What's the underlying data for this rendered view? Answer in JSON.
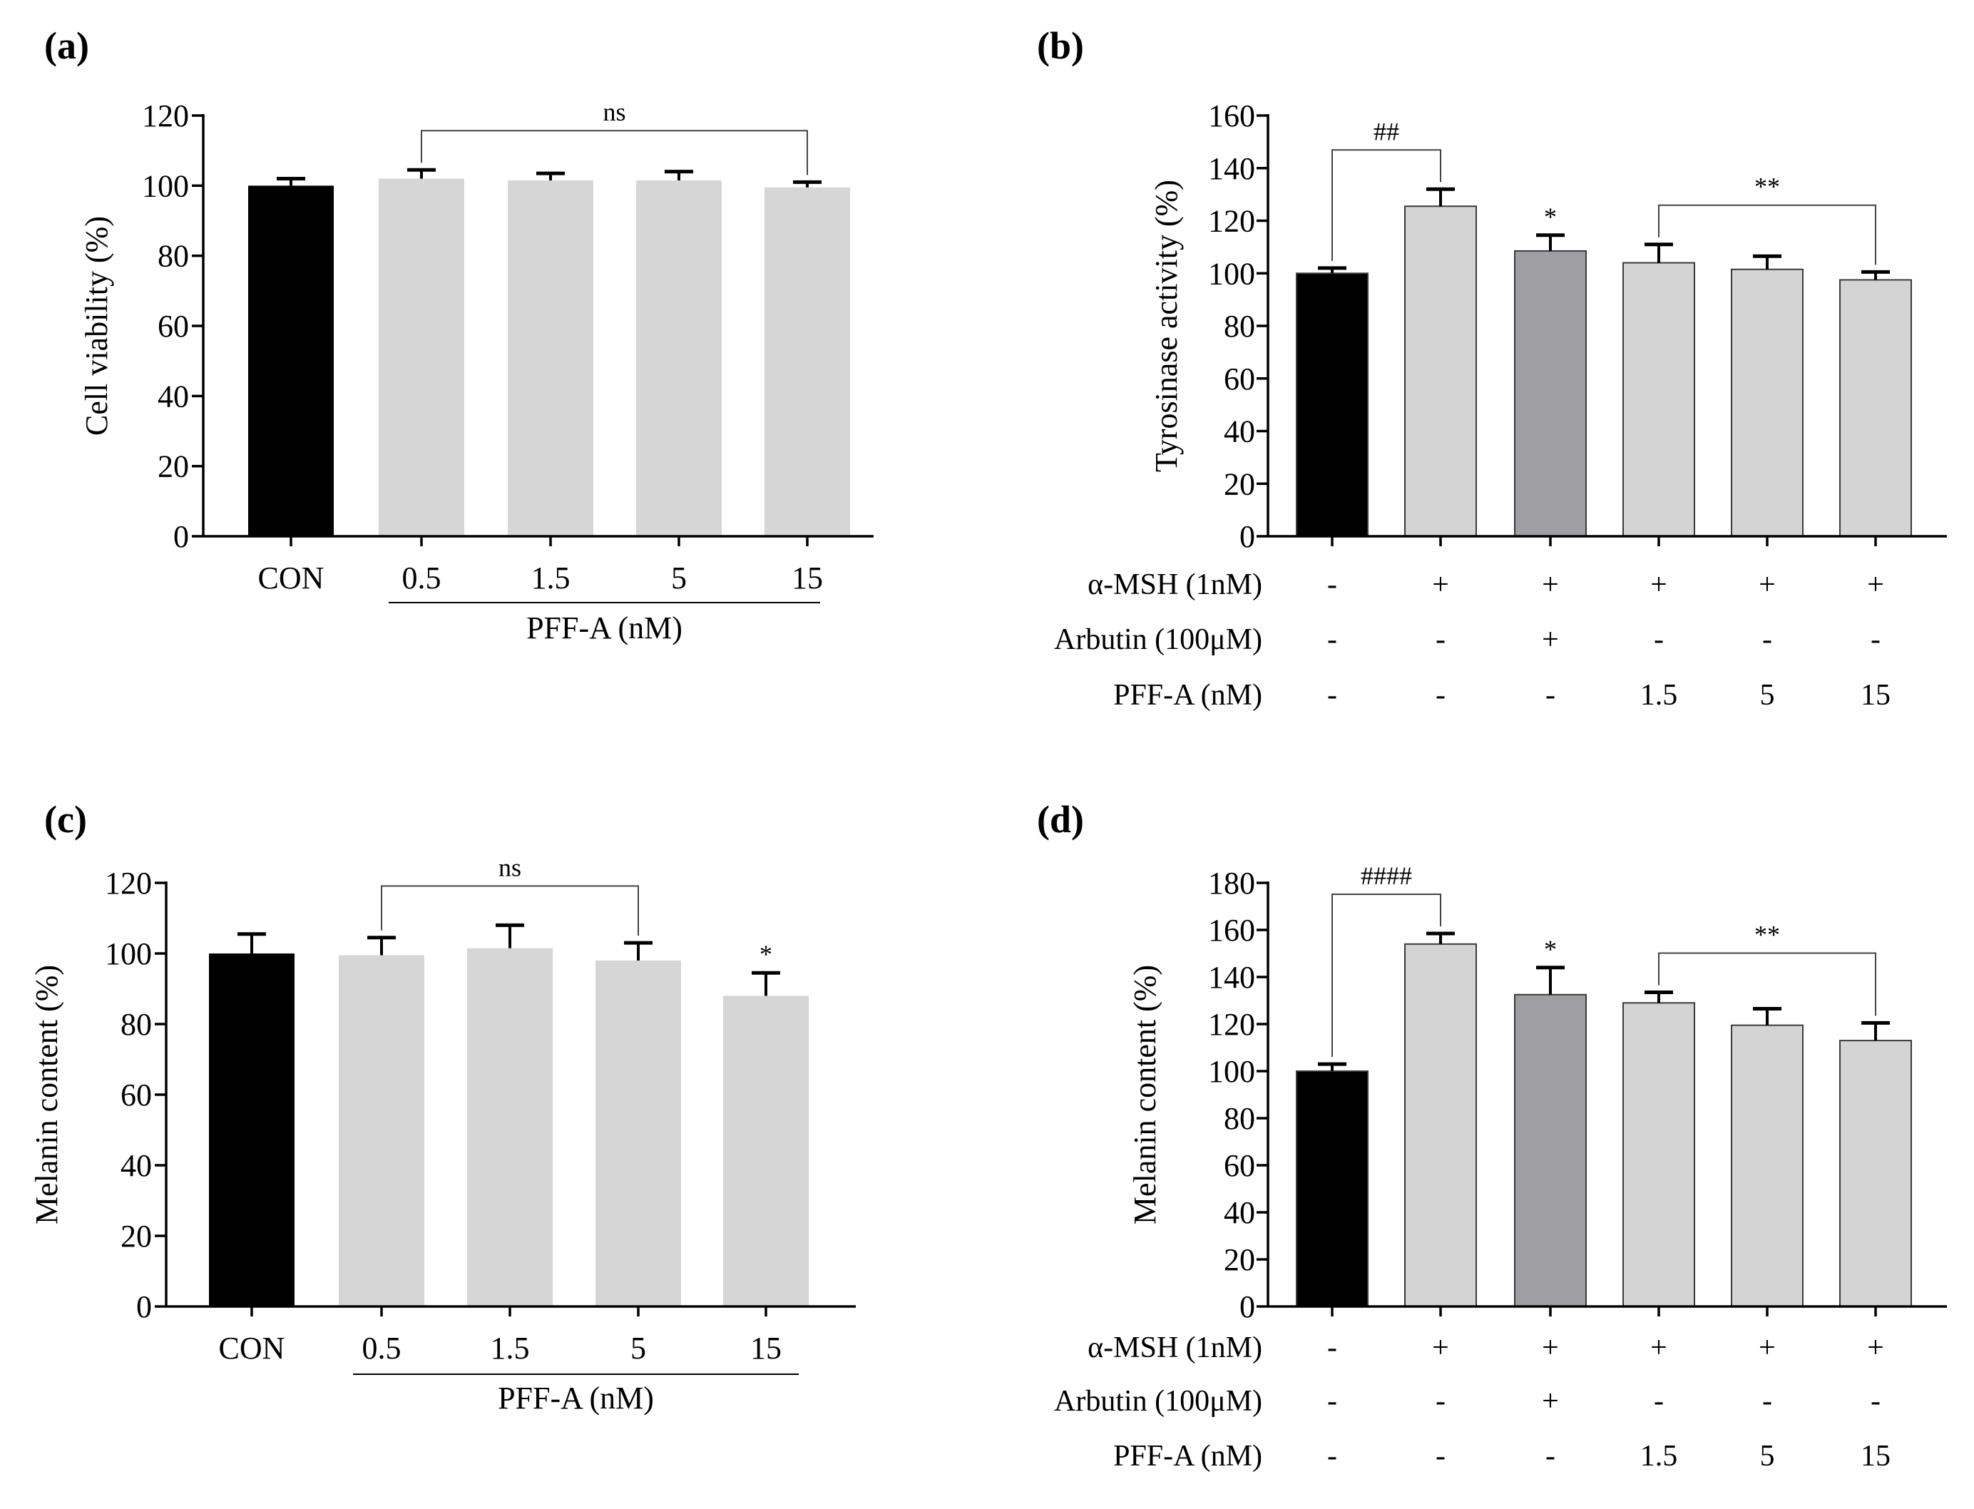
{
  "chart_data": [
    {
      "panel": "(a)",
      "type": "bar",
      "ylabel": "Cell viability (%)",
      "ylim": [
        0,
        120
      ],
      "yticks": [
        0,
        20,
        40,
        60,
        80,
        100,
        120
      ],
      "categories": [
        "CON",
        "0.5",
        "1.5",
        "5",
        "15"
      ],
      "values": [
        100,
        102,
        101.5,
        101.5,
        99.5
      ],
      "errors": [
        2,
        2.5,
        2,
        2.5,
        1.5
      ],
      "colors": [
        "#000000",
        "#d6d6d6",
        "#d6d6d6",
        "#d6d6d6",
        "#d6d6d6"
      ],
      "group_label": "PFF-A (nM)",
      "significance": [
        {
          "text": "ns",
          "type": "bracket",
          "from": 1,
          "to": 4
        }
      ]
    },
    {
      "panel": "(b)",
      "type": "bar",
      "ylabel": "Tyrosinase activity (%)",
      "ylim": [
        0,
        160
      ],
      "yticks": [
        0,
        20,
        40,
        60,
        80,
        100,
        120,
        140,
        160
      ],
      "values": [
        100,
        125.5,
        108.5,
        104,
        101.5,
        97.5
      ],
      "errors": [
        2,
        6.5,
        6,
        7,
        5,
        3
      ],
      "colors": [
        "#000000",
        "#d4d4d4",
        "#9e9ea3",
        "#d4d4d4",
        "#d4d4d4",
        "#d4d4d4"
      ],
      "treatment_rows": [
        {
          "label": "α-MSH (1nM)",
          "values": [
            "-",
            "+",
            "+",
            "+",
            "+",
            "+"
          ]
        },
        {
          "label": "Arbutin (100μM)",
          "values": [
            "-",
            "-",
            "+",
            "-",
            "-",
            "-"
          ]
        },
        {
          "label": "PFF-A (nM)",
          "values": [
            "-",
            "-",
            "-",
            "1.5",
            "5",
            "15"
          ]
        }
      ],
      "significance": [
        {
          "text": "##",
          "type": "bracket",
          "from": 0,
          "to": 1
        },
        {
          "text": "*",
          "type": "star",
          "bar": 2
        },
        {
          "text": "**",
          "type": "bracket",
          "from": 3,
          "to": 5
        }
      ]
    },
    {
      "panel": "(c)",
      "type": "bar",
      "ylabel": "Melanin content (%)",
      "ylim": [
        0,
        120
      ],
      "yticks": [
        0,
        20,
        40,
        60,
        80,
        100,
        120
      ],
      "categories": [
        "CON",
        "0.5",
        "1.5",
        "5",
        "15"
      ],
      "values": [
        100,
        99.5,
        101.5,
        98,
        88
      ],
      "errors": [
        5.5,
        5,
        6.5,
        5,
        6.5
      ],
      "colors": [
        "#000000",
        "#d6d6d6",
        "#d6d6d6",
        "#d6d6d6",
        "#d6d6d6"
      ],
      "group_label": "PFF-A (nM)",
      "significance": [
        {
          "text": "ns",
          "type": "bracket",
          "from": 1,
          "to": 3
        },
        {
          "text": "*",
          "type": "star",
          "bar": 4
        }
      ]
    },
    {
      "panel": "(d)",
      "type": "bar",
      "ylabel": "Melanin content (%)",
      "ylim": [
        0,
        180
      ],
      "yticks": [
        0,
        20,
        40,
        60,
        80,
        100,
        120,
        140,
        160,
        180
      ],
      "values": [
        100,
        154,
        132.5,
        129,
        119.5,
        113
      ],
      "errors": [
        3,
        4.5,
        11.5,
        4.5,
        7,
        7.5
      ],
      "colors": [
        "#000000",
        "#d4d4d4",
        "#9e9ea3",
        "#d4d4d4",
        "#d4d4d4",
        "#d4d4d4"
      ],
      "treatment_rows": [
        {
          "label": "α-MSH (1nM)",
          "values": [
            "-",
            "+",
            "+",
            "+",
            "+",
            "+"
          ]
        },
        {
          "label": "Arbutin (100μM)",
          "values": [
            "-",
            "-",
            "+",
            "-",
            "-",
            "-"
          ]
        },
        {
          "label": "PFF-A (nM)",
          "values": [
            "-",
            "-",
            "-",
            "1.5",
            "5",
            "15"
          ]
        }
      ],
      "significance": [
        {
          "text": "####",
          "type": "bracket",
          "from": 0,
          "to": 1
        },
        {
          "text": "*",
          "type": "star",
          "bar": 2
        },
        {
          "text": "**",
          "type": "bracket",
          "from": 3,
          "to": 5
        }
      ]
    }
  ]
}
